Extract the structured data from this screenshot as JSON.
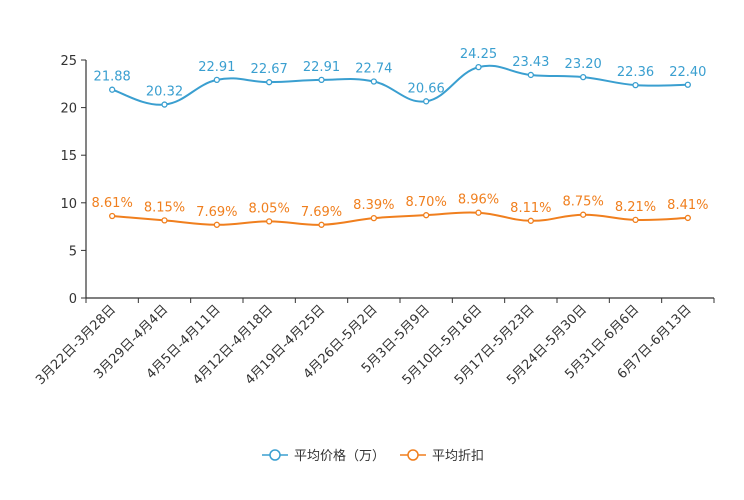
{
  "chart_data": {
    "type": "line",
    "title": "",
    "xlabel": "",
    "ylabel": "",
    "ylim": [
      0,
      25
    ],
    "yticks": [
      0,
      5,
      10,
      15,
      20,
      25
    ],
    "grid": false,
    "legend_position": "bottom",
    "categories": [
      "3月22日-3月28日",
      "3月29日-4月4日",
      "4月5日-4月11日",
      "4月12日-4月18日",
      "4月19日-4月25日",
      "4月26日-5月2日",
      "5月3日-5月9日",
      "5月10日-5月16日",
      "5月17日-5月23日",
      "5月24日-5月30日",
      "5月31日-6月6日",
      "6月7日-6月13日"
    ],
    "series": [
      {
        "name": "平均价格（万）",
        "color": "#3a9fd0",
        "values": [
          21.88,
          20.32,
          22.91,
          22.67,
          22.91,
          22.74,
          20.66,
          24.25,
          23.43,
          23.2,
          22.36,
          22.4
        ],
        "labels": [
          "21.88",
          "20.32",
          "22.91",
          "22.67",
          "22.91",
          "22.74",
          "20.66",
          "24.25",
          "23.43",
          "23.20",
          "22.36",
          "22.40"
        ]
      },
      {
        "name": "平均折扣",
        "color": "#f07f1e",
        "values": [
          8.61,
          8.15,
          7.69,
          8.05,
          7.69,
          8.39,
          8.7,
          8.96,
          8.11,
          8.75,
          8.21,
          8.41
        ],
        "labels": [
          "8.61%",
          "8.15%",
          "7.69%",
          "8.05%",
          "7.69%",
          "8.39%",
          "8.70%",
          "8.96%",
          "8.11%",
          "8.75%",
          "8.21%",
          "8.41%"
        ]
      }
    ]
  }
}
